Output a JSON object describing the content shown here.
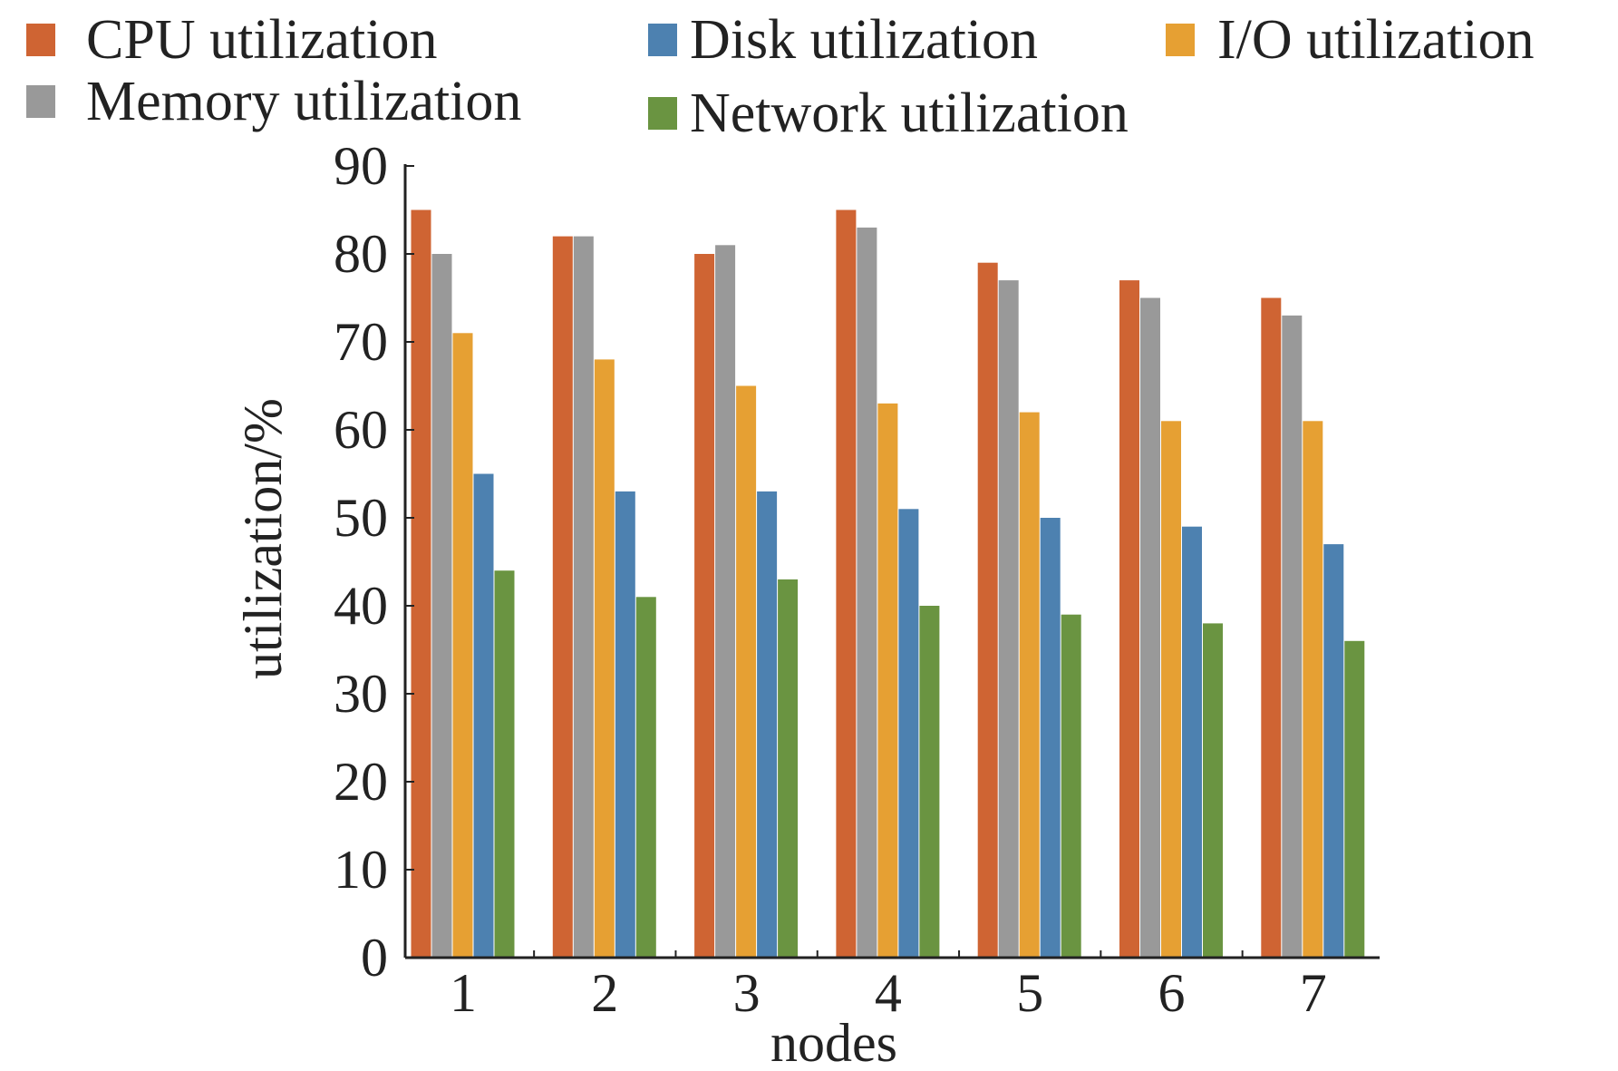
{
  "chart_data": {
    "type": "bar",
    "title": "",
    "xlabel": "nodes",
    "ylabel": "utilization/%",
    "ylim": [
      0,
      90
    ],
    "yticks": [
      "0",
      "10",
      "20",
      "30",
      "40",
      "50",
      "60",
      "70",
      "80",
      "90"
    ],
    "categories": [
      "1",
      "2",
      "3",
      "4",
      "5",
      "6",
      "7"
    ],
    "legend_position": "top",
    "grid": false,
    "series": [
      {
        "name": "CPU utilization",
        "color": "#cf6433",
        "values": [
          85,
          82,
          80,
          85,
          79,
          77,
          75
        ]
      },
      {
        "name": "Memory utilization",
        "color": "#999999",
        "values": [
          80,
          82,
          81,
          83,
          77,
          75,
          73
        ]
      },
      {
        "name": "I/O utilization",
        "color": "#e6a033",
        "values": [
          71,
          68,
          65,
          63,
          62,
          61,
          61
        ]
      },
      {
        "name": "Disk utilization",
        "color": "#4d81b0",
        "values": [
          55,
          53,
          53,
          51,
          50,
          49,
          47
        ]
      },
      {
        "name": "Network utilization",
        "color": "#6a9441",
        "values": [
          44,
          41,
          43,
          40,
          39,
          38,
          36
        ]
      }
    ]
  }
}
